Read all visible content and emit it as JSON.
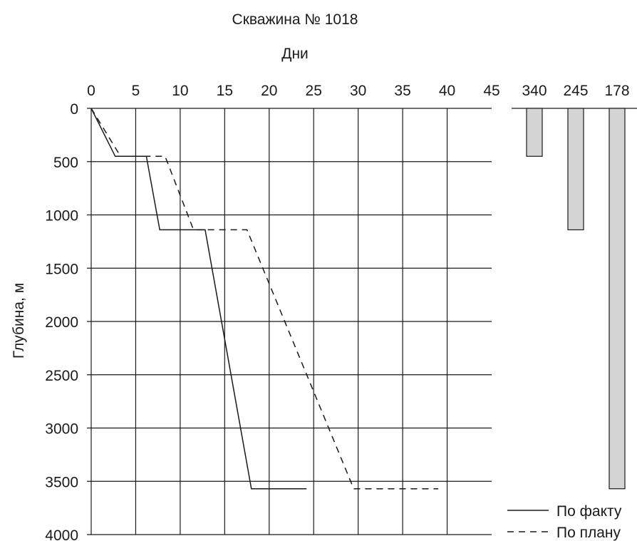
{
  "chart_data": [
    {
      "type": "line",
      "title": "Скважина № 1018",
      "xlabel": "Дни",
      "ylabel": "Глубина, м",
      "x_axis_position": "top",
      "y_inverted": true,
      "xlim": [
        0,
        45
      ],
      "ylim": [
        0,
        4000
      ],
      "x_ticks": [
        "0",
        "5",
        "10",
        "15",
        "20",
        "25",
        "30",
        "35",
        "40",
        "45"
      ],
      "y_ticks": [
        "0",
        "500",
        "1000",
        "1500",
        "2000",
        "2500",
        "3000",
        "3500",
        "4000"
      ],
      "grid": true,
      "legend_position": "bottom-right",
      "series": [
        {
          "name": "По факту",
          "style": "solid",
          "points": [
            [
              0,
              0
            ],
            [
              2.7,
              450
            ],
            [
              6.2,
              450
            ],
            [
              7.7,
              1140
            ],
            [
              12.8,
              1140
            ],
            [
              18.0,
              3570
            ],
            [
              24.2,
              3570
            ]
          ]
        },
        {
          "name": "По плану",
          "style": "dashed",
          "points": [
            [
              0,
              0
            ],
            [
              3.3,
              450
            ],
            [
              8.3,
              450
            ],
            [
              11.5,
              1140
            ],
            [
              17.5,
              1140
            ],
            [
              29.5,
              3570
            ],
            [
              39.0,
              3570
            ]
          ]
        }
      ]
    },
    {
      "type": "bar",
      "categories": [
        "340",
        "245",
        "178"
      ],
      "values": [
        450,
        1140,
        3570
      ],
      "y_inverted": true,
      "bar_color": "#d4d4d4"
    }
  ]
}
